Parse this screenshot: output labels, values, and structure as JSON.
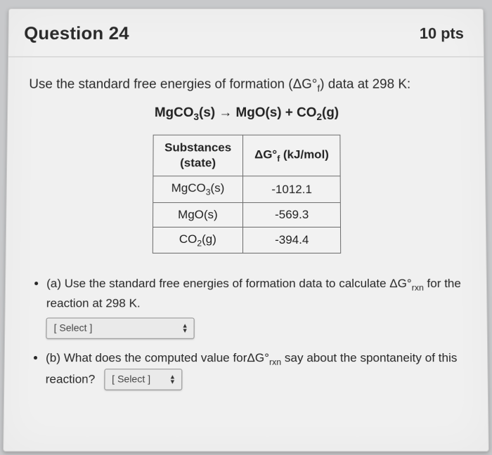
{
  "header": {
    "title": "Question 24",
    "points": "10 pts"
  },
  "prompt_html": "Use the standard free energies of formation (ΔG°<sub>f</sub>) data at 298 K:",
  "equation_html": "MgCO<sub>3</sub>(s) → MgO(s) + CO<sub>2</sub>(g)",
  "table": {
    "col1_header_html": "Substances<br>(state)",
    "col2_header_html": "ΔG°<sub>f</sub> (kJ/mol)",
    "rows": [
      {
        "sub_html": "MgCO<sub>3</sub>(s)",
        "val": "-1012.1"
      },
      {
        "sub_html": "MgO(s)",
        "val": "-569.3"
      },
      {
        "sub_html": "CO<sub>2</sub>(g)",
        "val": "-394.4"
      }
    ]
  },
  "parts": {
    "a_html": "(a) Use the standard free energies of formation data to calculate ΔG°<sub>rxn</sub> for the reaction at 298 K.",
    "b_html": "(b) What does the computed value forΔG°<sub>rxn</sub> say about the spontaneity of this reaction?"
  },
  "selects": {
    "placeholder": "[ Select ]"
  }
}
